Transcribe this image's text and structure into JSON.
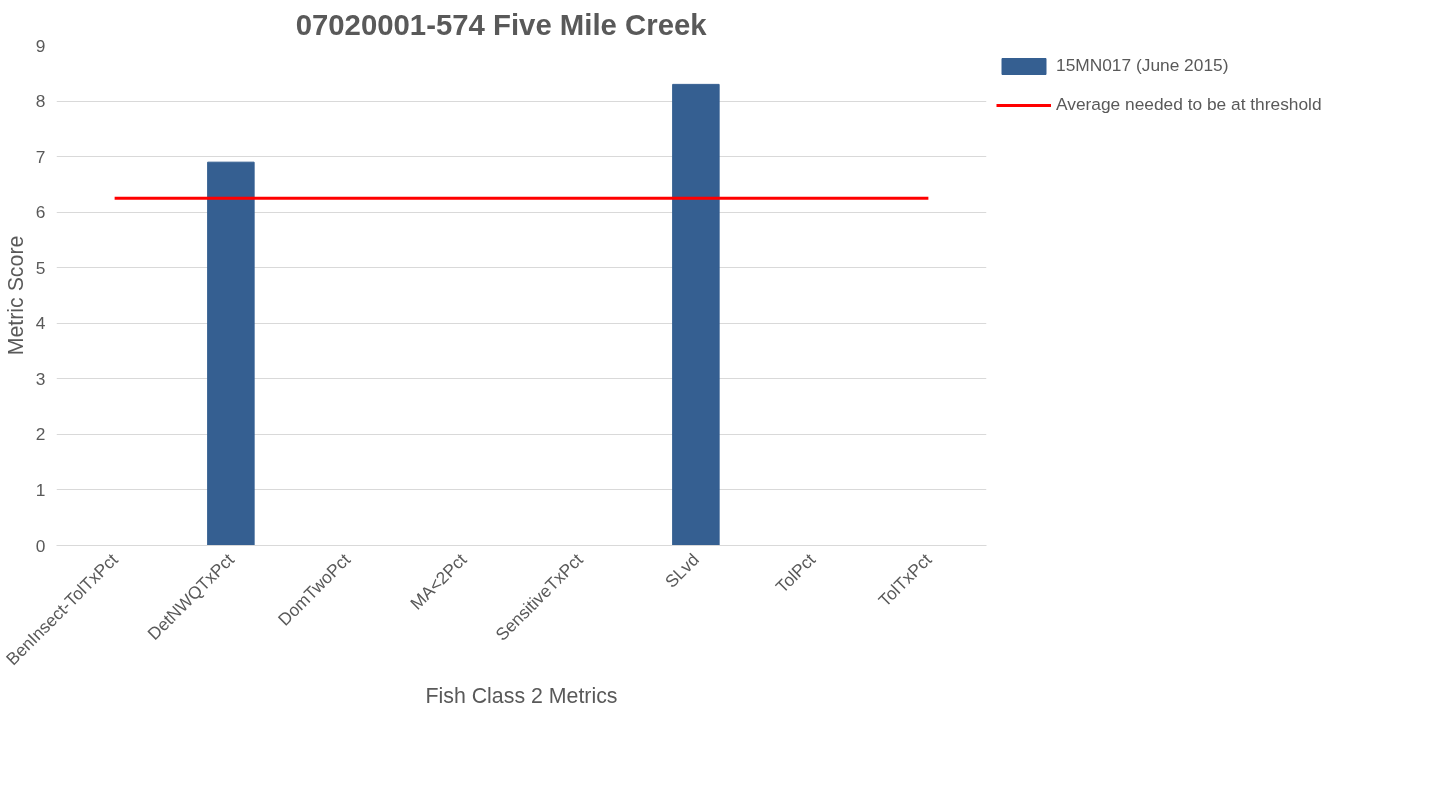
{
  "chart_data": {
    "type": "bar",
    "title": "07020001-574      Five Mile Creek",
    "xlabel": "Fish Class 2 Metrics",
    "ylabel": "Metric Score",
    "categories": [
      "BenInsect-TolTxPct",
      "DetNWQTxPct",
      "DomTwoPct",
      "MA<2Pct",
      "SensitiveTxPct",
      "SLvd",
      "TolPct",
      "TolTxPct"
    ],
    "series": [
      {
        "name": "15MN017 (June 2015)",
        "color": "#355f91",
        "values": [
          0,
          6.9,
          0,
          0,
          0,
          8.3,
          0,
          0
        ]
      },
      {
        "name": "Average needed to be at threshold",
        "type": "line",
        "color": "#ff0000",
        "values": [
          6.25,
          6.25,
          6.25,
          6.25,
          6.25,
          6.25,
          6.25,
          6.25
        ]
      }
    ],
    "ylim": [
      0,
      9
    ],
    "yticks": [
      0,
      1,
      2,
      3,
      4,
      5,
      6,
      7,
      8,
      9
    ],
    "grid": "y",
    "legend": "right"
  }
}
